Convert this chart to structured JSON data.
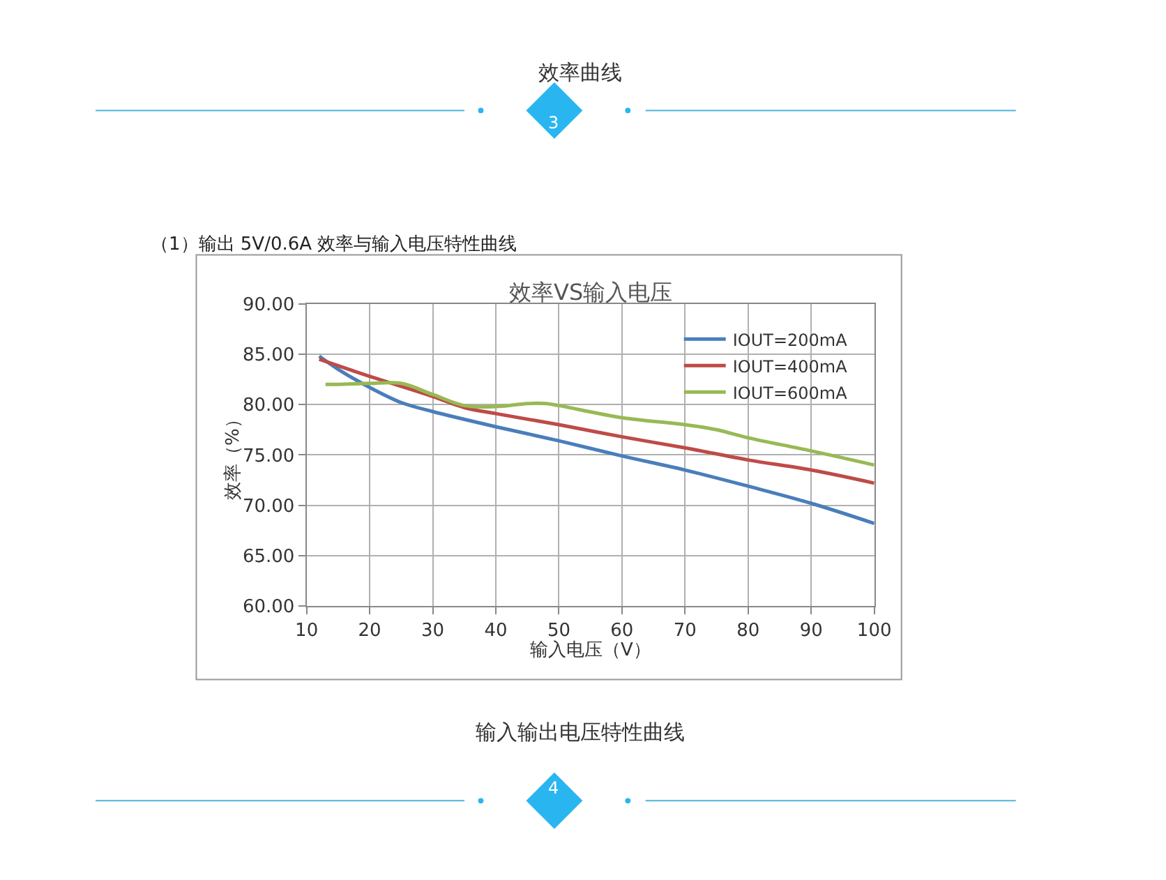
{
  "chart_data": {
    "type": "line",
    "title": "效率VS输入电压",
    "xlabel": "输入电压（V）",
    "ylabel": "效率（%）",
    "annotations": [
      "效率曲线",
      "3",
      "（1）输出 5V/0.6A 效率与输入电压特性曲线",
      "输入输出电压特性曲线",
      "4"
    ],
    "series": [
      {
        "name": "IOUT=200mA",
        "color": "#4a7ebb",
        "x": [
          12,
          15,
          20,
          25,
          30,
          40,
          50,
          60,
          70,
          80,
          90,
          100
        ],
        "values": [
          84.8,
          83.5,
          81.7,
          80.2,
          79.3,
          77.8,
          76.4,
          74.9,
          73.5,
          71.9,
          70.2,
          68.2
        ]
      },
      {
        "name": "IOUT=400mA",
        "color": "#be4b48",
        "x": [
          12,
          20,
          30,
          35,
          40,
          50,
          60,
          70,
          80,
          90,
          100
        ],
        "values": [
          84.5,
          82.8,
          80.8,
          79.7,
          79.1,
          78.0,
          76.8,
          75.7,
          74.5,
          73.5,
          72.2
        ]
      },
      {
        "name": "IOUT=600mA",
        "color": "#98b954",
        "x": [
          13,
          15,
          20,
          25,
          30,
          35,
          40,
          45,
          48,
          50,
          60,
          70,
          75,
          80,
          90,
          100
        ],
        "values": [
          82.0,
          82.0,
          82.1,
          82.1,
          81.0,
          79.9,
          79.8,
          80.1,
          80.1,
          79.9,
          78.7,
          78.0,
          77.5,
          76.7,
          75.4,
          74.0
        ]
      }
    ],
    "xlim": [
      10,
      100
    ],
    "xticks": [
      10,
      20,
      30,
      40,
      50,
      60,
      70,
      80,
      90,
      100
    ],
    "ylim": [
      60,
      90
    ],
    "yticks": [
      {
        "value": 60,
        "label": "60.00"
      },
      {
        "value": 65,
        "label": "65.00"
      },
      {
        "value": 70,
        "label": "70.00"
      },
      {
        "value": 75,
        "label": "75.00"
      },
      {
        "value": 80,
        "label": "80.00"
      },
      {
        "value": 85,
        "label": "85.00"
      },
      {
        "value": 90,
        "label": "90.00"
      }
    ],
    "grid": true,
    "legend": "top right",
    "marker": "none",
    "line_style": "solid"
  }
}
